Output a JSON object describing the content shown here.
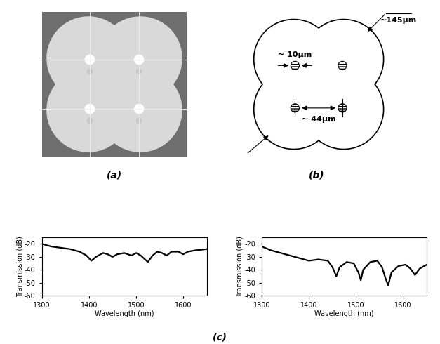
{
  "panels": {
    "a": {
      "caption": "(a)"
    },
    "b": {
      "caption": "(b)",
      "annotations": {
        "outer_size": "~145μm",
        "core_size": "~ 10μm",
        "core_spacing": "~ 44μm"
      }
    },
    "c": {
      "caption": "(c)"
    }
  },
  "chart_data": [
    {
      "type": "line",
      "x_label": "Wavelength (nm)",
      "y_label": "Transmission (dB)",
      "x": [
        1300,
        1320,
        1340,
        1360,
        1380,
        1395,
        1405,
        1415,
        1430,
        1440,
        1450,
        1460,
        1475,
        1490,
        1500,
        1510,
        1525,
        1535,
        1545,
        1555,
        1565,
        1575,
        1590,
        1600,
        1610,
        1625,
        1650
      ],
      "series": [
        {
          "color": "#000000",
          "values": [
            -20,
            -22,
            -23,
            -24,
            -26,
            -29,
            -33,
            -30,
            -27,
            -28,
            -30,
            -28,
            -27,
            -29,
            -27,
            -29,
            -34,
            -29,
            -26,
            -27,
            -29,
            -26,
            -26,
            -28,
            -26,
            -25,
            -24
          ]
        }
      ],
      "xlim": [
        1300,
        1650
      ],
      "xticks": [
        1300,
        1400,
        1500,
        1600
      ],
      "ylim": [
        -60,
        -15
      ],
      "yticks": [
        -60,
        -50,
        -40,
        -30,
        -20
      ]
    },
    {
      "type": "line",
      "x_label": "Wavelength (nm)",
      "y_label": "Transmission (dB)",
      "x": [
        1300,
        1320,
        1340,
        1360,
        1380,
        1400,
        1420,
        1440,
        1450,
        1458,
        1465,
        1480,
        1495,
        1505,
        1510,
        1515,
        1530,
        1545,
        1555,
        1562,
        1568,
        1575,
        1590,
        1605,
        1615,
        1625,
        1635,
        1650
      ],
      "series": [
        {
          "color": "#000000",
          "values": [
            -22,
            -25,
            -27,
            -29,
            -31,
            -33,
            -32,
            -33,
            -38,
            -45,
            -38,
            -34,
            -35,
            -42,
            -48,
            -40,
            -34,
            -33,
            -38,
            -46,
            -52,
            -42,
            -37,
            -36,
            -39,
            -44,
            -39,
            -36
          ]
        }
      ],
      "xlim": [
        1300,
        1650
      ],
      "xticks": [
        1300,
        1400,
        1500,
        1600
      ],
      "ylim": [
        -60,
        -15
      ],
      "yticks": [
        -60,
        -50,
        -40,
        -30,
        -20
      ]
    }
  ]
}
